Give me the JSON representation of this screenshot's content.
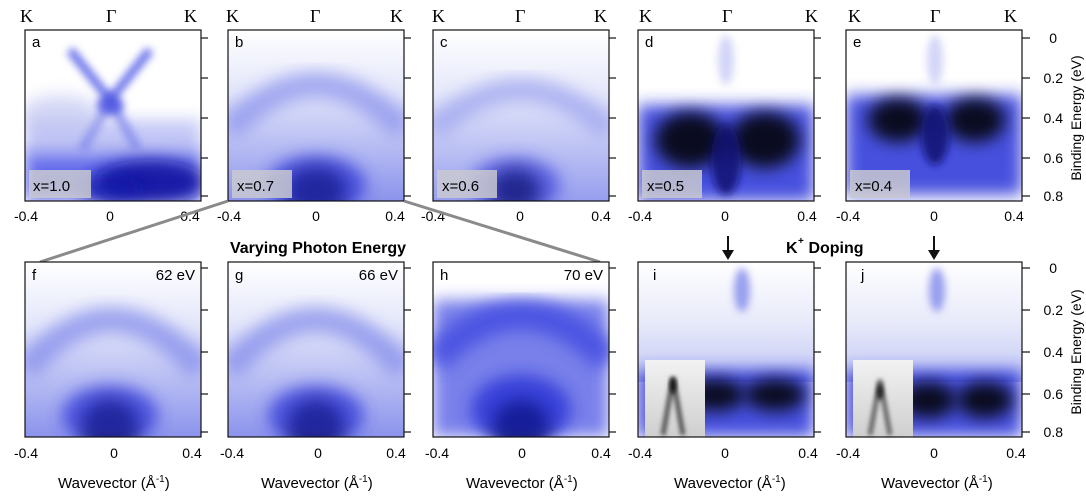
{
  "figure": {
    "panels_top": [
      {
        "letter": "a",
        "label": "x=1.0"
      },
      {
        "letter": "b",
        "label": "x=0.7"
      },
      {
        "letter": "c",
        "label": "x=0.6"
      },
      {
        "letter": "d",
        "label": "x=0.5"
      },
      {
        "letter": "e",
        "label": "x=0.4"
      }
    ],
    "panels_bottom": [
      {
        "letter": "f",
        "label": "62 eV"
      },
      {
        "letter": "g",
        "label": "66 eV"
      },
      {
        "letter": "h",
        "label": "70 eV"
      },
      {
        "letter": "i",
        "label": ""
      },
      {
        "letter": "j",
        "label": ""
      }
    ],
    "k_labels": [
      "K",
      "Γ",
      "K"
    ],
    "x_ticks": [
      "-0.4",
      "0",
      "0.4"
    ],
    "y_ticks": [
      "0",
      "0.2",
      "0.4",
      "0.6",
      "0.8"
    ],
    "x_axis_label": "Wavevector (Å",
    "x_axis_label_sup": "-1",
    "x_axis_label_end": ")",
    "y_axis_label": "Binding Energy (eV)",
    "varying_label": "Varying Photon Energy",
    "doping_label_main": "K",
    "doping_label_sup": "+",
    "doping_label_rest": " Doping",
    "colors": {
      "intensity": "#1a22e0",
      "peak": "#000000",
      "background": "#ffffff"
    }
  }
}
